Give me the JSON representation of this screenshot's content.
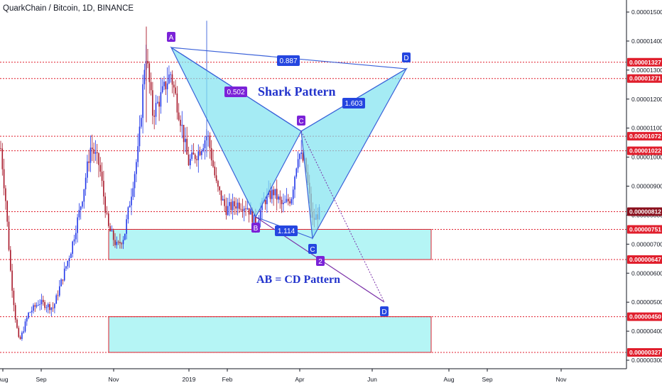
{
  "title": "QuarkChain / Bitcoin, 1D, BINANCE",
  "colors": {
    "up": "#2137e8",
    "down": "#a8182a",
    "level_line": "#e01e2c",
    "zone_fill": "#9cf2f2",
    "shark_fill": "#7fe3ef",
    "shark_line": "#3b62d9",
    "abcd_line": "#7a2fa8",
    "label_purple": "#7b22d8",
    "label_blue": "#2546e0",
    "text_blue": "#2233cc"
  },
  "chart_data": {
    "type": "candlestick",
    "ylim": [
      2.9e-06,
      1.54e-05
    ],
    "y_ticks": [
      "0.00001500",
      "0.00001400",
      "0.00001300",
      "0.00001200",
      "0.00001100",
      "0.00001000",
      "0.00000900",
      "0.00000800",
      "0.00000700",
      "0.00000600",
      "0.00000500",
      "0.00000400",
      "0.00000300"
    ],
    "x_ticks": [
      "Aug",
      "Sep",
      "Nov",
      "2019",
      "Feb",
      "Apr",
      "Jun",
      "Aug",
      "Sep",
      "Nov"
    ],
    "price_levels": [
      "0.00001327",
      "0.00001271",
      "0.00001072",
      "0.00001022",
      "0.00000812",
      "0.00000751",
      "0.00000647",
      "0.00000450",
      "0.00000327"
    ],
    "last_price": "0.00000812",
    "zones": [
      {
        "from": "0.00000647",
        "to": "0.00000751"
      },
      {
        "from": "0.00000327",
        "to": "0.00000450"
      }
    ],
    "shark_pattern": {
      "name": "Shark Pattern",
      "points": [
        "A",
        "B",
        "C",
        "D"
      ],
      "ratios": [
        "0.502",
        "0.887",
        "1.603",
        "1.114"
      ]
    },
    "abcd_pattern": {
      "name": "AB = CD Pattern",
      "points": [
        "C",
        "2",
        "D"
      ]
    }
  }
}
